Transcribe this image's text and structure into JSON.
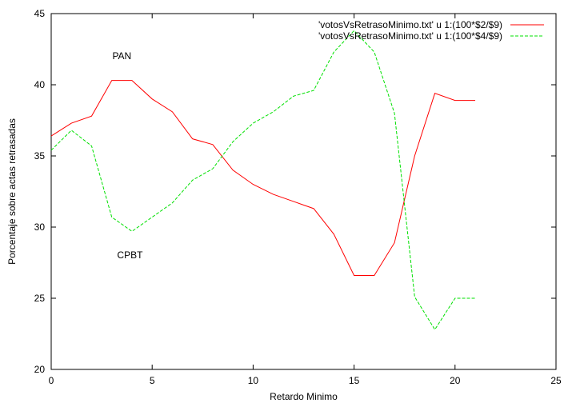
{
  "chart_data": {
    "type": "line",
    "xlabel": "Retardo Minimo",
    "ylabel": "Porcentaje sobre actas retrasadas",
    "xlim": [
      0,
      25
    ],
    "ylim": [
      20,
      45
    ],
    "xticks": [
      0,
      5,
      10,
      15,
      20,
      25
    ],
    "yticks": [
      20,
      25,
      30,
      35,
      40,
      45
    ],
    "grid": false,
    "legend_position": "top-right",
    "series": [
      {
        "name": "'votosVsRetrasoMinimo.txt' u 1:(100*$2/$9)",
        "color": "#ff0000",
        "dash": "solid",
        "x": [
          0,
          1,
          2,
          3,
          4,
          5,
          6,
          7,
          8,
          9,
          10,
          11,
          12,
          13,
          14,
          15,
          16,
          17,
          18,
          19,
          20,
          21
        ],
        "y": [
          36.4,
          37.3,
          37.8,
          40.3,
          40.3,
          39.0,
          38.1,
          36.2,
          35.8,
          34.0,
          33.0,
          32.3,
          31.8,
          31.3,
          29.5,
          26.6,
          26.6,
          28.9,
          35.0,
          39.4,
          38.9,
          38.9
        ]
      },
      {
        "name": "'votosVsRetrasoMinimo.txt' u 1:(100*$4/$9)",
        "color": "#00e000",
        "dash": "dashed",
        "x": [
          0,
          1,
          2,
          3,
          4,
          5,
          6,
          7,
          8,
          9,
          10,
          11,
          12,
          13,
          14,
          15,
          16,
          17,
          18,
          19,
          20,
          21
        ],
        "y": [
          35.4,
          36.8,
          35.7,
          30.7,
          29.7,
          30.7,
          31.7,
          33.3,
          34.1,
          36.0,
          37.3,
          38.1,
          39.2,
          39.6,
          42.3,
          43.8,
          42.3,
          38.0,
          25.1,
          22.8,
          25.0,
          25.0
        ]
      }
    ],
    "annotations": [
      {
        "text": "PAN",
        "x": 3.5,
        "y": 41.8
      },
      {
        "text": "CPBT",
        "x": 3.9,
        "y": 27.8
      }
    ]
  }
}
